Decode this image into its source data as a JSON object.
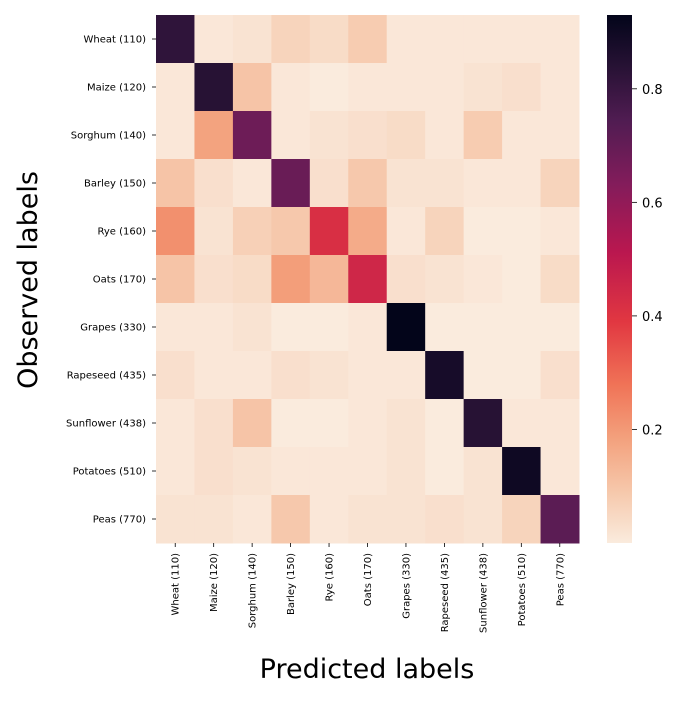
{
  "chart_data": {
    "type": "heatmap",
    "title": "",
    "xlabel": "Predicted labels",
    "ylabel": "Observed labels",
    "x_categories": [
      "Wheat (110)",
      "Maize (120)",
      "Sorghum (140)",
      "Barley (150)",
      "Rye (160)",
      "Oats (170)",
      "Grapes (330)",
      "Rapeseed (435)",
      "Sunflower (438)",
      "Potatoes (510)",
      "Peas (770)"
    ],
    "y_categories": [
      "Wheat (110)",
      "Maize (120)",
      "Sorghum (140)",
      "Barley (150)",
      "Rye (160)",
      "Oats (170)",
      "Grapes (330)",
      "Rapeseed (435)",
      "Sunflower (438)",
      "Potatoes (510)",
      "Peas (770)"
    ],
    "values": [
      [
        0.82,
        0.01,
        0.02,
        0.06,
        0.04,
        0.08,
        0.01,
        0.01,
        0.01,
        0.01,
        0.01
      ],
      [
        0.01,
        0.84,
        0.1,
        0.01,
        0.0,
        0.01,
        0.01,
        0.01,
        0.02,
        0.03,
        0.01
      ],
      [
        0.01,
        0.18,
        0.68,
        0.01,
        0.02,
        0.03,
        0.04,
        0.01,
        0.08,
        0.01,
        0.01
      ],
      [
        0.1,
        0.03,
        0.01,
        0.69,
        0.03,
        0.09,
        0.02,
        0.02,
        0.01,
        0.01,
        0.06
      ],
      [
        0.22,
        0.02,
        0.07,
        0.09,
        0.42,
        0.16,
        0.01,
        0.06,
        0.0,
        0.0,
        0.01
      ],
      [
        0.1,
        0.03,
        0.04,
        0.19,
        0.13,
        0.45,
        0.03,
        0.02,
        0.01,
        0.0,
        0.04
      ],
      [
        0.01,
        0.01,
        0.02,
        0.0,
        0.0,
        0.01,
        0.94,
        0.0,
        0.0,
        0.0,
        0.0
      ],
      [
        0.03,
        0.01,
        0.01,
        0.03,
        0.02,
        0.01,
        0.01,
        0.88,
        0.0,
        0.0,
        0.03
      ],
      [
        0.01,
        0.03,
        0.1,
        0.0,
        0.0,
        0.01,
        0.02,
        0.0,
        0.84,
        0.01,
        0.01
      ],
      [
        0.01,
        0.03,
        0.02,
        0.01,
        0.01,
        0.01,
        0.02,
        0.0,
        0.02,
        0.9,
        0.01
      ],
      [
        0.02,
        0.02,
        0.01,
        0.09,
        0.01,
        0.02,
        0.02,
        0.03,
        0.02,
        0.06,
        0.72
      ]
    ],
    "colorbar": {
      "colormap": "rocket_r",
      "range": [
        0,
        0.93
      ],
      "ticks": [
        0.2,
        0.4,
        0.6,
        0.8
      ],
      "tick_labels": [
        "0.2",
        "0.4",
        "0.6",
        "0.8"
      ]
    },
    "grid": false,
    "legend": "colorbar-right"
  }
}
